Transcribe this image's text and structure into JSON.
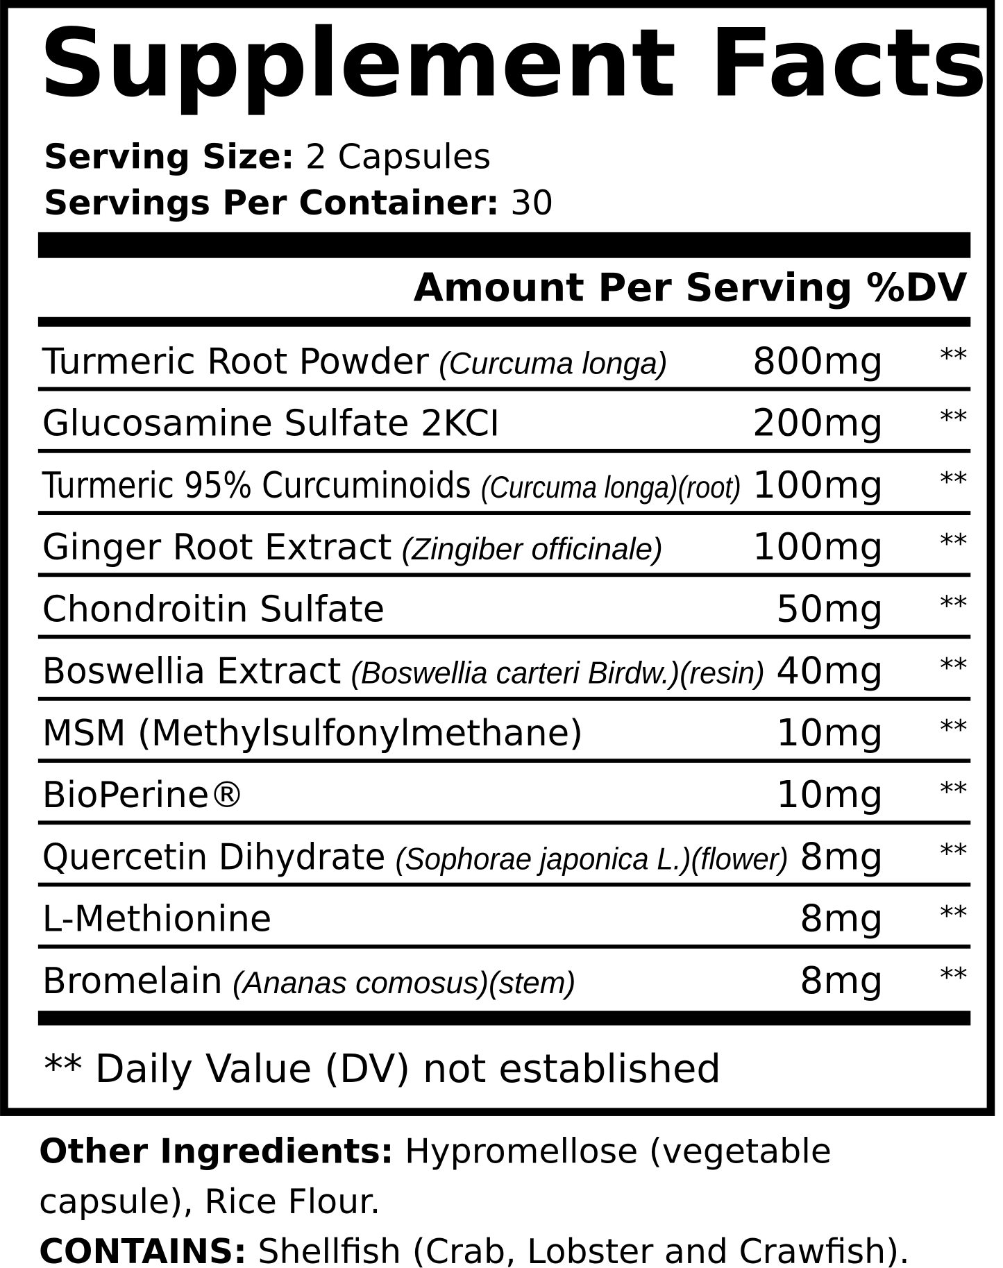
{
  "title": "Supplement Facts",
  "serving_size": {
    "label": "Serving Size:",
    "value": "2 Capsules"
  },
  "servings_per_container": {
    "label": "Servings Per Container:",
    "value": "30"
  },
  "column_header": "Amount Per Serving %DV",
  "rows": [
    {
      "name": "Turmeric Root Powder",
      "detail": "(Curcuma longa)",
      "amount": "800mg",
      "dv": "**"
    },
    {
      "name": "Glucosamine Sulfate 2KCI",
      "amount": "200mg",
      "dv": "**"
    },
    {
      "name": "Turmeric 95% Curcuminoids",
      "detail": "(Curcuma longa)(root)",
      "amount": "100mg",
      "dv": "**"
    },
    {
      "name": "Ginger Root Extract",
      "detail": "(Zingiber officinale)",
      "amount": "100mg",
      "dv": "**"
    },
    {
      "name": "Chondroitin Sulfate",
      "amount": "50mg",
      "dv": "**"
    },
    {
      "name": "Boswellia Extract",
      "detail": "(Boswellia carteri Birdw.)(resin)",
      "amount": "40mg",
      "dv": "**"
    },
    {
      "name": "MSM (Methylsulfonylmethane)",
      "amount": "10mg",
      "dv": "**"
    },
    {
      "name": "BioPerine®",
      "amount": "10mg",
      "dv": "**"
    },
    {
      "name": "Quercetin Dihydrate",
      "detail": "(Sophorae japonica L.)(flower)",
      "amount": "8mg",
      "dv": "**"
    },
    {
      "name": "L-Methionine",
      "amount": "8mg",
      "dv": "**"
    },
    {
      "name": "Bromelain",
      "detail": "(Ananas comosus)(stem)",
      "amount": "8mg",
      "dv": "**"
    }
  ],
  "footnote": "** Daily Value (DV) not established",
  "other_ingredients": {
    "label": "Other Ingredients:",
    "lines": [
      "Hypromellose (vegetable",
      "capsule), Rice Flour."
    ]
  },
  "contains": {
    "label": "CONTAINS:",
    "value": "Shellfish (Crab, Lobster and Crawfish)."
  }
}
